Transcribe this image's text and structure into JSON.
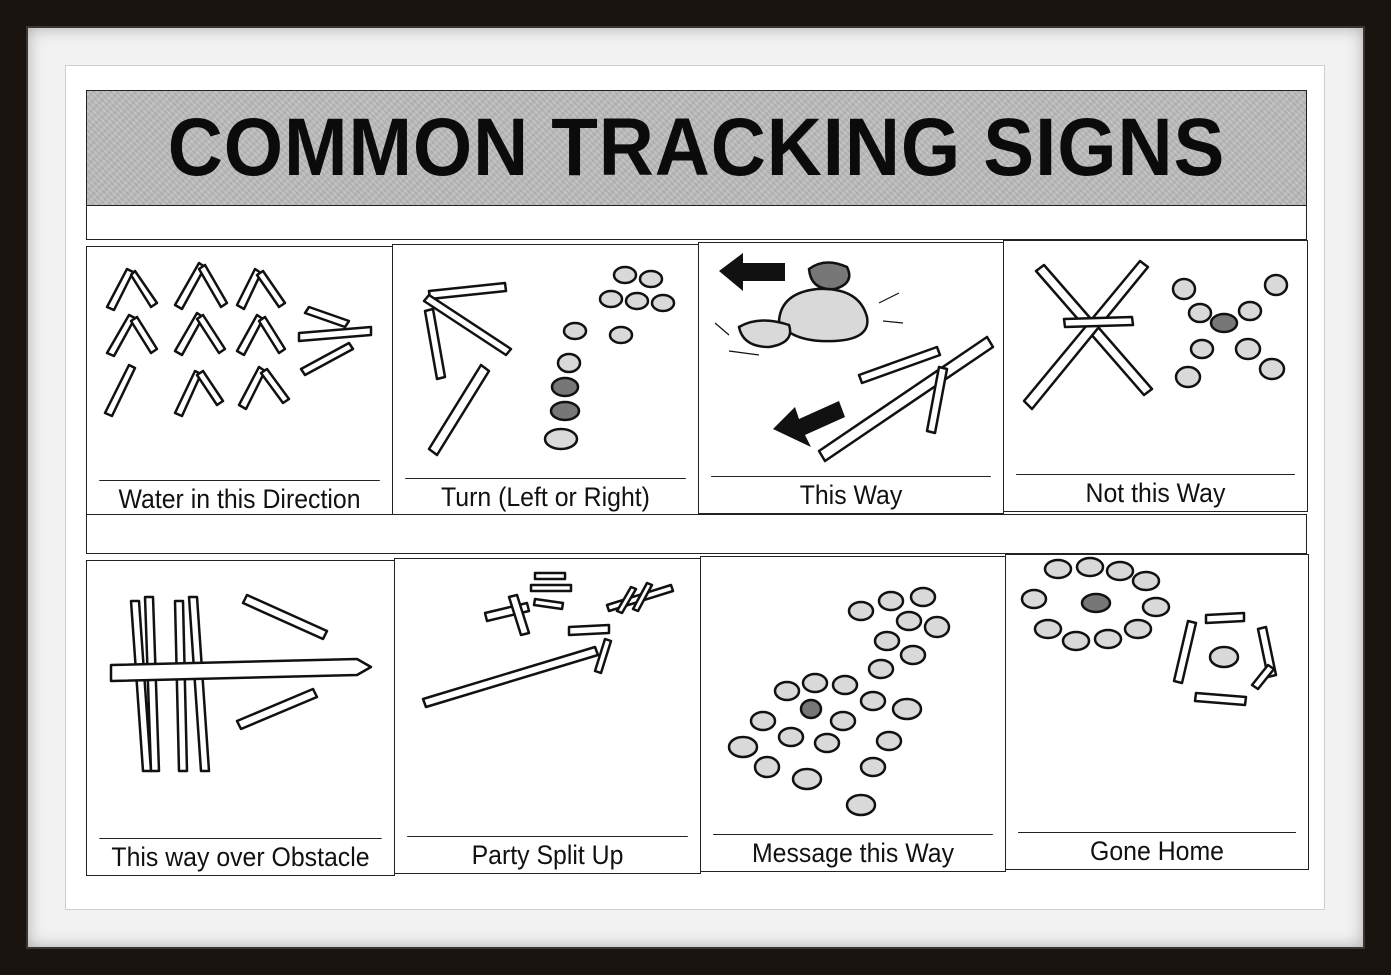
{
  "title": "COMMON TRACKING SIGNS",
  "signs": [
    {
      "label": "Water in this Direction",
      "icon": "sticks-chevrons-arrow-icon"
    },
    {
      "label": "Turn (Left or Right)",
      "icon": "sticks-and-stones-turn-icon"
    },
    {
      "label": "This Way",
      "icon": "arrows-rock-sticks-icon"
    },
    {
      "label": "Not this Way",
      "icon": "crossed-sticks-stones-icon"
    },
    {
      "label": "This way over Obstacle",
      "icon": "crossed-sticks-arrow-icon"
    },
    {
      "label": "Party Split Up",
      "icon": "split-sticks-icon"
    },
    {
      "label": "Message this Way",
      "icon": "stones-path-icon"
    },
    {
      "label": "Gone Home",
      "icon": "stone-circles-icon"
    }
  ]
}
